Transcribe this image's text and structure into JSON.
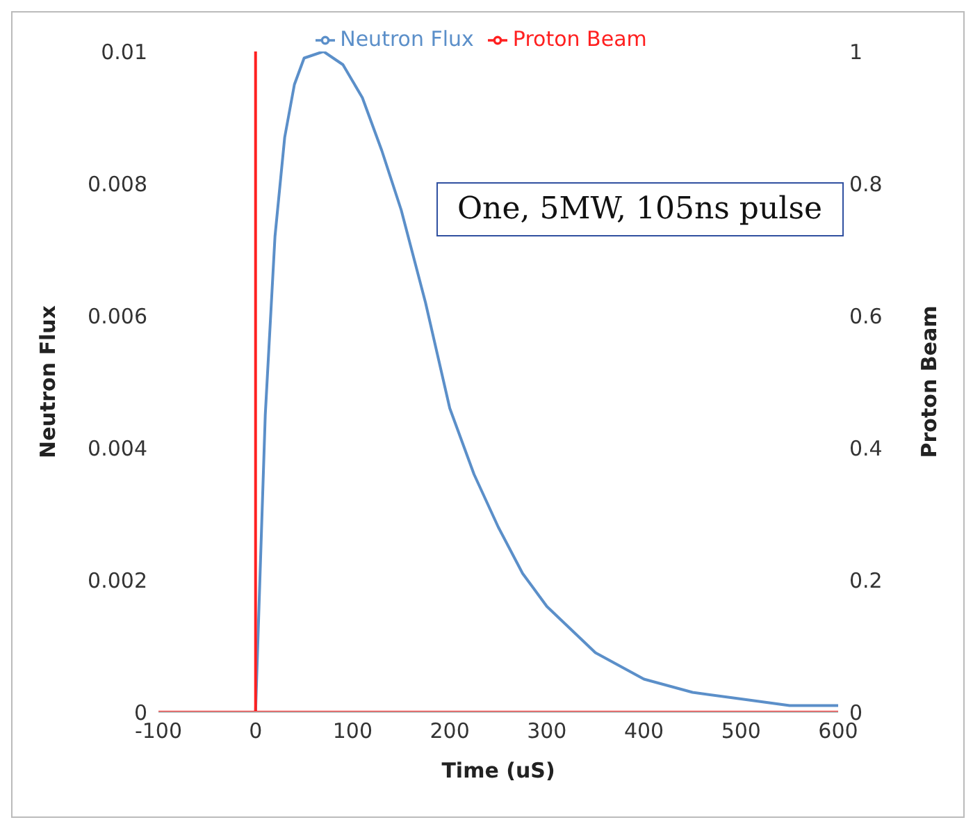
{
  "chart_data": {
    "type": "line",
    "xlabel": "Time (uS)",
    "ylabel": "Neutron Flux",
    "y2label": "Proton Beam",
    "annotations": [
      "One, 5MW, 105ns pulse"
    ],
    "xlim": [
      -100,
      600
    ],
    "xticks": [
      -100,
      0,
      100,
      200,
      300,
      400,
      500,
      600
    ],
    "ylim": [
      0,
      0.01
    ],
    "yticks": [
      0,
      0.002,
      0.004,
      0.006,
      0.008,
      0.01
    ],
    "y2lim": [
      0,
      1
    ],
    "y2ticks": [
      0,
      0.2,
      0.4,
      0.6,
      0.8,
      1
    ],
    "grid": false,
    "legend": "top",
    "marker": "none",
    "line_style": "solid",
    "series": [
      {
        "name": "Neutron Flux",
        "color": "#5b8fc9",
        "x": [
          0,
          10,
          20,
          30,
          40,
          50,
          70,
          90,
          110,
          130,
          150,
          175,
          200,
          225,
          250,
          275,
          300,
          350,
          400,
          450,
          500,
          550,
          600
        ],
        "values": [
          0,
          0.0045,
          0.0072,
          0.0087,
          0.0095,
          0.0099,
          0.01,
          0.0098,
          0.0093,
          0.0085,
          0.0076,
          0.0062,
          0.0046,
          0.0036,
          0.0028,
          0.0021,
          0.0016,
          0.0009,
          0.0005,
          0.0003,
          0.0002,
          0.0001,
          0.0001
        ]
      },
      {
        "name": "Proton Beam",
        "color": "#ff2020",
        "axis": "y2",
        "x": [
          -100,
          0,
          0,
          0,
          600
        ],
        "values": [
          0,
          0,
          1,
          0,
          0
        ]
      }
    ]
  }
}
